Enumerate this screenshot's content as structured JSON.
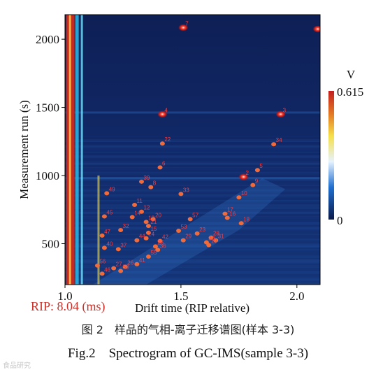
{
  "figure": {
    "caption_cn": "图 2　样品的气相-离子迁移谱图(样本 3-3)",
    "caption_en": "Fig.2　Spectrogram of GC-IMS(sample 3-3)",
    "rip_label": "RIP: 8.04 (ms)",
    "watermark": "食品研究"
  },
  "chart_data": {
    "type": "heatmap",
    "title": "",
    "xlabel": "Drift time (RIP relative)",
    "ylabel": "Measurement run (s)",
    "xlim": [
      1.0,
      2.1
    ],
    "ylim": [
      200,
      2180
    ],
    "x_ticks": [
      "1.0",
      "1.5",
      "2.0"
    ],
    "y_ticks": [
      "500",
      "1000",
      "1500",
      "2000"
    ],
    "colorbar": {
      "unit": "V",
      "max": "0.615",
      "min": "0",
      "colors": [
        "#0b1a4a",
        "#1f6fd0",
        "#ffffff",
        "#f5e04a",
        "#e37a24",
        "#c21f1f"
      ]
    },
    "grid": false,
    "rip_line_x": 1.02,
    "peaks": [
      {
        "label": "7",
        "x": 1.51,
        "y": 2085
      },
      {
        "label": "1",
        "x": 2.09,
        "y": 2075
      },
      {
        "label": "4",
        "x": 1.42,
        "y": 1450
      },
      {
        "label": "3",
        "x": 1.93,
        "y": 1450
      },
      {
        "label": "34",
        "x": 1.9,
        "y": 1230
      },
      {
        "label": "22",
        "x": 1.42,
        "y": 1235
      },
      {
        "label": "6",
        "x": 1.41,
        "y": 1060
      },
      {
        "label": "5",
        "x": 1.83,
        "y": 1040
      },
      {
        "label": "2",
        "x": 1.77,
        "y": 990
      },
      {
        "label": "9",
        "x": 1.81,
        "y": 930
      },
      {
        "label": "39",
        "x": 1.33,
        "y": 955
      },
      {
        "label": "8",
        "x": 1.37,
        "y": 915
      },
      {
        "label": "10",
        "x": 1.75,
        "y": 840
      },
      {
        "label": "49",
        "x": 1.18,
        "y": 870
      },
      {
        "label": "33",
        "x": 1.5,
        "y": 865
      },
      {
        "label": "11",
        "x": 1.3,
        "y": 785
      },
      {
        "label": "12",
        "x": 1.33,
        "y": 735
      },
      {
        "label": "14",
        "x": 1.29,
        "y": 695
      },
      {
        "label": "17",
        "x": 1.69,
        "y": 720
      },
      {
        "label": "16",
        "x": 1.7,
        "y": 690
      },
      {
        "label": "18",
        "x": 1.76,
        "y": 650
      },
      {
        "label": "13",
        "x": 1.35,
        "y": 660
      },
      {
        "label": "20",
        "x": 1.38,
        "y": 680
      },
      {
        "label": "21",
        "x": 1.36,
        "y": 630
      },
      {
        "label": "57",
        "x": 1.54,
        "y": 680
      },
      {
        "label": "45",
        "x": 1.17,
        "y": 700
      },
      {
        "label": "32",
        "x": 1.24,
        "y": 600
      },
      {
        "label": "15",
        "x": 1.36,
        "y": 580
      },
      {
        "label": "53",
        "x": 1.49,
        "y": 595
      },
      {
        "label": "23",
        "x": 1.57,
        "y": 575
      },
      {
        "label": "28",
        "x": 1.63,
        "y": 545
      },
      {
        "label": "31",
        "x": 1.65,
        "y": 525
      },
      {
        "label": "30",
        "x": 1.61,
        "y": 510
      },
      {
        "label": "19",
        "x": 1.62,
        "y": 490
      },
      {
        "label": "24",
        "x": 1.35,
        "y": 540
      },
      {
        "label": "42",
        "x": 1.41,
        "y": 520
      },
      {
        "label": "29",
        "x": 1.51,
        "y": 525
      },
      {
        "label": "25",
        "x": 1.39,
        "y": 480
      },
      {
        "label": "47",
        "x": 1.16,
        "y": 560
      },
      {
        "label": "44",
        "x": 1.31,
        "y": 525
      },
      {
        "label": "40",
        "x": 1.17,
        "y": 470
      },
      {
        "label": "37",
        "x": 1.23,
        "y": 460
      },
      {
        "label": "36",
        "x": 1.4,
        "y": 455
      },
      {
        "label": "26",
        "x": 1.26,
        "y": 330
      },
      {
        "label": "56",
        "x": 1.14,
        "y": 340
      },
      {
        "label": "27",
        "x": 1.21,
        "y": 320
      },
      {
        "label": "50",
        "x": 1.24,
        "y": 300
      },
      {
        "label": "46",
        "x": 1.16,
        "y": 280
      },
      {
        "label": "55",
        "x": 1.36,
        "y": 405
      },
      {
        "label": "41",
        "x": 1.31,
        "y": 350
      }
    ]
  }
}
